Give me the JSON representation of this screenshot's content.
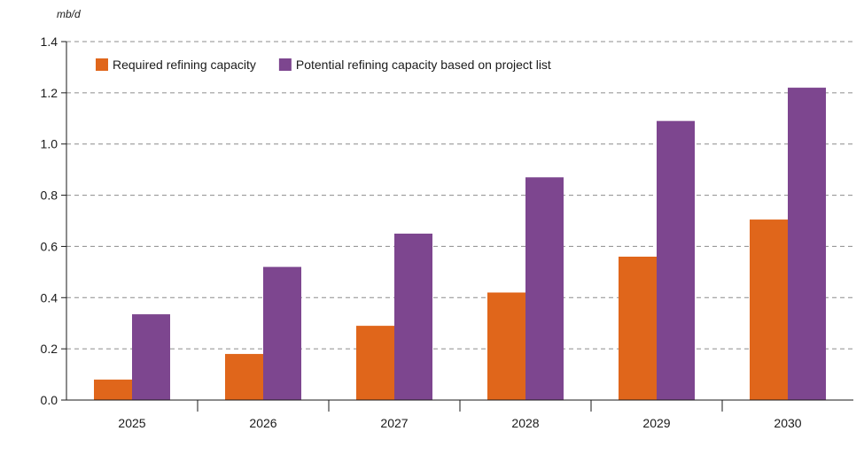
{
  "chart_data": {
    "type": "bar",
    "unit_label": "mb/d",
    "categories": [
      "2025",
      "2026",
      "2027",
      "2028",
      "2029",
      "2030"
    ],
    "series": [
      {
        "name": "Required refining capacity",
        "values": [
          0.08,
          0.18,
          0.29,
          0.42,
          0.56,
          0.705
        ],
        "color": "#e0661b"
      },
      {
        "name": "Potential refining capacity based on project list",
        "values": [
          0.335,
          0.52,
          0.65,
          0.87,
          1.09,
          1.22
        ],
        "color": "#7d468f"
      }
    ],
    "ylim": [
      0,
      1.4
    ],
    "yticks": [
      "0.0",
      "0.2",
      "0.4",
      "0.6",
      "0.8",
      "1.0",
      "1.2",
      "1.4"
    ],
    "ytick_values": [
      0,
      0.2,
      0.4,
      0.6,
      0.8,
      1.0,
      1.2,
      1.4
    ],
    "grid": true,
    "legend_position": "top-left"
  }
}
